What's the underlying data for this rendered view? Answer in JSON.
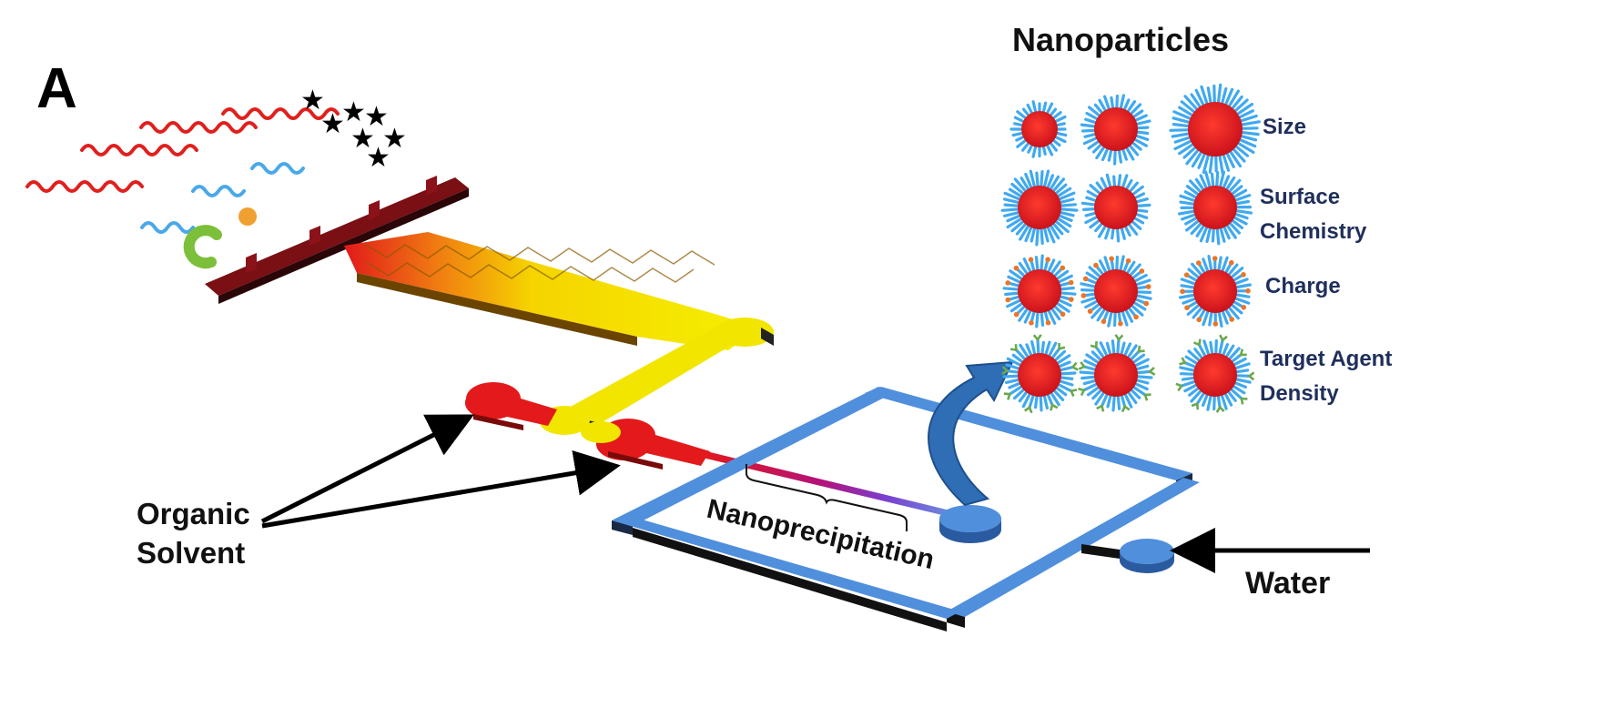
{
  "panel_label": "A",
  "nanoparticles": {
    "title": "Nanoparticles",
    "row_labels": [
      {
        "lines": [
          "Size"
        ]
      },
      {
        "lines": [
          "Surface",
          "Chemistry"
        ]
      },
      {
        "lines": [
          "Charge"
        ]
      },
      {
        "lines": [
          "Target Agent",
          "Density"
        ]
      }
    ]
  },
  "labels": {
    "organic_solvent": [
      "Organic",
      "Solvent"
    ],
    "nanoprecipitation": "Nanoprecipitation",
    "water": "Water"
  },
  "colors": {
    "polymer_red": "#e0201e",
    "polymer_blue": "#4aa8e8",
    "core_red": "#d9161e",
    "corona_blue": "#3fa9f0",
    "charge_orange": "#e8762a",
    "ligand_green": "#6aa84f",
    "channel_blue": "#4f8fdc",
    "mixer_yellow": "#f2e600",
    "inlet_red": "#e3191b",
    "base_darkred": "#7a0f14",
    "label_navy": "#1f2f5c"
  },
  "icons": [
    "star-icon",
    "drug-sphere-icon",
    "targeting-ligand-icon",
    "flow-arrow-icon"
  ]
}
